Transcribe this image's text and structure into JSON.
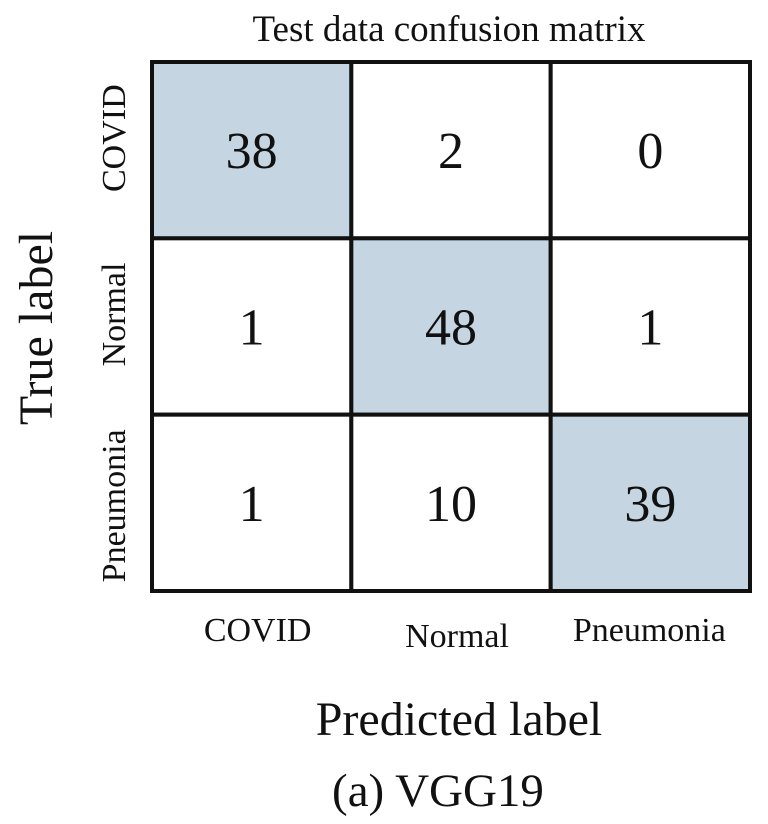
{
  "chart_data": {
    "type": "heatmap",
    "title": "Test data confusion matrix",
    "xlabel": "Predicted label",
    "ylabel": "True label",
    "x_categories": [
      "COVID",
      "Normal",
      "Pneumonia"
    ],
    "y_categories": [
      "COVID",
      "Normal",
      "Pneumonia"
    ],
    "values": [
      [
        38,
        2,
        0
      ],
      [
        1,
        48,
        1
      ],
      [
        1,
        10,
        39
      ]
    ],
    "highlight": "diagonal",
    "colors": {
      "highlight": "#c5d6e2",
      "cell": "#ffffff",
      "border": "#111111",
      "text": "#111111"
    }
  },
  "caption": "(a) VGG19"
}
